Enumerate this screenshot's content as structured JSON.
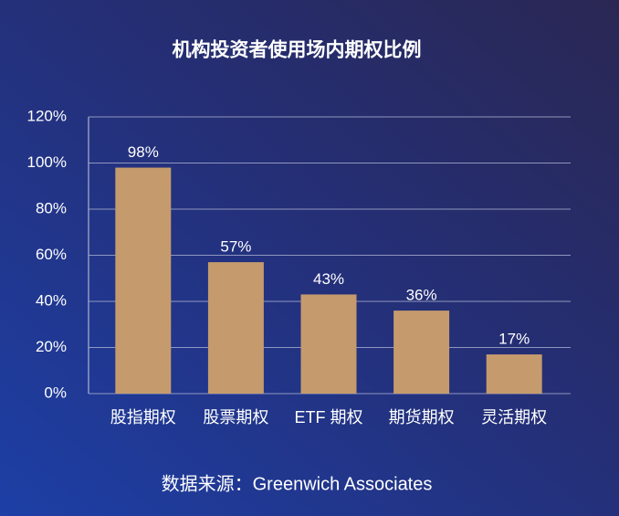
{
  "chart_data": {
    "type": "bar",
    "title": "机构投资者使用场内期权比例",
    "categories": [
      "股指期权",
      "股票期权",
      "ETF 期权",
      "期货期权",
      "灵活期权"
    ],
    "values": [
      98,
      57,
      43,
      36,
      17
    ],
    "value_labels": [
      "98%",
      "57%",
      "43%",
      "36%",
      "17%"
    ],
    "color": "#c59b6d",
    "ylim": [
      0,
      120
    ],
    "yticks": [
      {
        "value": 0,
        "label": "0%"
      },
      {
        "value": 20,
        "label": "20%"
      },
      {
        "value": 40,
        "label": "40%"
      },
      {
        "value": 60,
        "label": "60%"
      },
      {
        "value": 80,
        "label": "80%"
      },
      {
        "value": 100,
        "label": "100%"
      },
      {
        "value": 120,
        "label": "120%"
      }
    ],
    "grid": true,
    "source": "数据来源：Greenwich Associates"
  }
}
